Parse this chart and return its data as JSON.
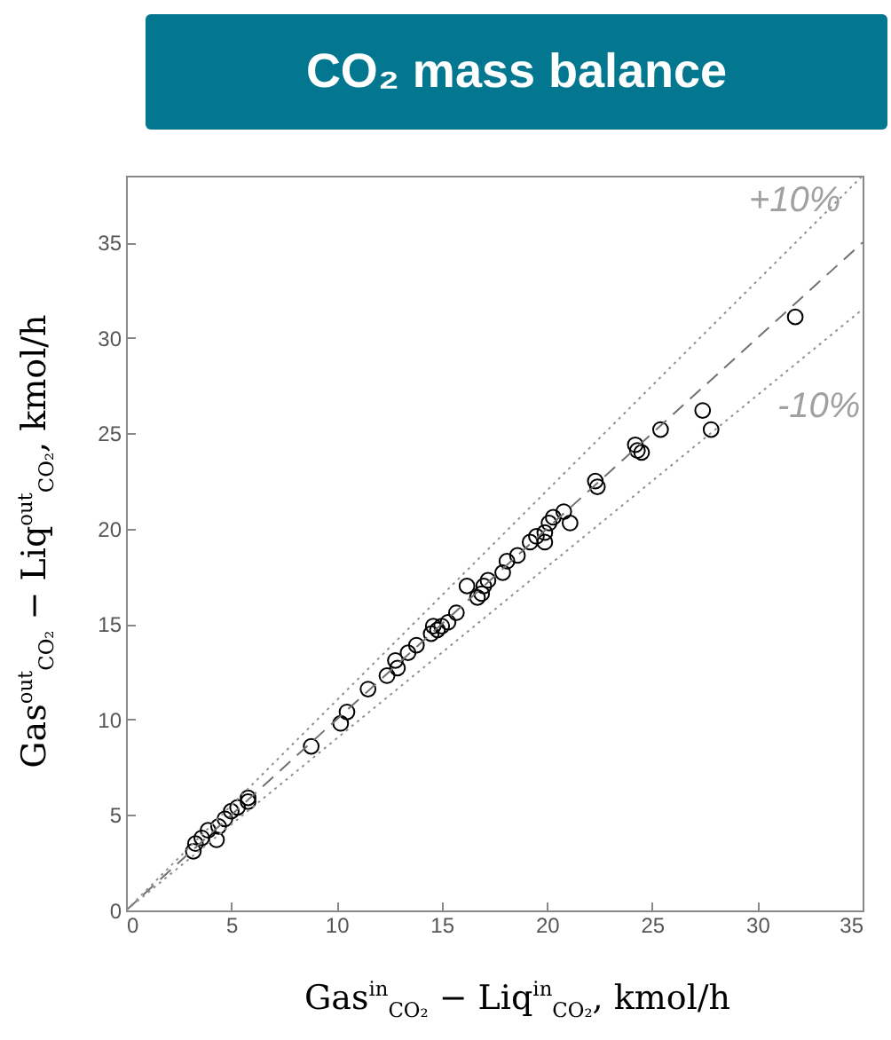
{
  "chart_data": {
    "type": "scatter",
    "title": "CO₂ mass balance",
    "xlabel": "Gas$^{in}$$_{CO₂}$ − Liq$^{in}$$_{CO₂}$, kmol/h",
    "ylabel": "Gas$^{out}$$_{CO₂}$ − Liq$^{out}$$_{CO₂}$, kmol/h",
    "xlim": [
      0,
      35
    ],
    "ylim": [
      0,
      38.5
    ],
    "xticks": [
      0,
      5,
      10,
      15,
      20,
      25,
      30,
      35
    ],
    "yticks": [
      0,
      5,
      10,
      15,
      20,
      25,
      30,
      35
    ],
    "annotations": [
      "+10%",
      "-10%"
    ],
    "series": [
      {
        "marker": "circle",
        "color": "#000000",
        "x": [
          31.8,
          27.4,
          27.8,
          25.4,
          24.2,
          24.3,
          24.5,
          22.3,
          22.4,
          20.8,
          21.1,
          20.3,
          20.1,
          19.9,
          19.9,
          19.2,
          19.5,
          18.6,
          18.1,
          17.9,
          17.2,
          17.0,
          16.9,
          16.7,
          16.2,
          15.7,
          15.3,
          15.0,
          14.6,
          14.5,
          14.8,
          13.8,
          13.4,
          12.8,
          12.9,
          12.4,
          11.5,
          10.5,
          10.2,
          8.8,
          5.8,
          5.8,
          5.3,
          5.0,
          4.7,
          4.4,
          4.3,
          3.9,
          3.6,
          3.3,
          3.2
        ],
        "values": [
          31.1,
          26.2,
          25.2,
          25.2,
          24.4,
          24.1,
          24.0,
          22.5,
          22.2,
          20.9,
          20.3,
          20.6,
          20.3,
          19.8,
          19.3,
          19.3,
          19.6,
          18.6,
          18.3,
          17.7,
          17.3,
          17.0,
          16.6,
          16.4,
          17.0,
          15.6,
          15.1,
          14.9,
          14.9,
          14.5,
          14.7,
          13.9,
          13.5,
          13.1,
          12.7,
          12.3,
          11.6,
          10.4,
          9.8,
          8.6,
          5.9,
          5.7,
          5.4,
          5.2,
          4.8,
          4.4,
          3.7,
          4.2,
          3.8,
          3.5,
          3.1
        ]
      },
      {
        "type": "line",
        "color": "#707070",
        "line_style": "dashed",
        "marker": "none",
        "x": [
          0,
          35
        ],
        "values": [
          0,
          35
        ]
      },
      {
        "type": "line",
        "color": "#909090",
        "line_style": "dotted",
        "x": [
          0,
          35
        ],
        "values": [
          0,
          38.5
        ],
        "marker": "none"
      },
      {
        "type": "line",
        "color": "#909090",
        "line_style": "dotted",
        "x": [
          0,
          35
        ],
        "values": [
          0,
          31.5
        ],
        "marker": "none"
      }
    ]
  }
}
